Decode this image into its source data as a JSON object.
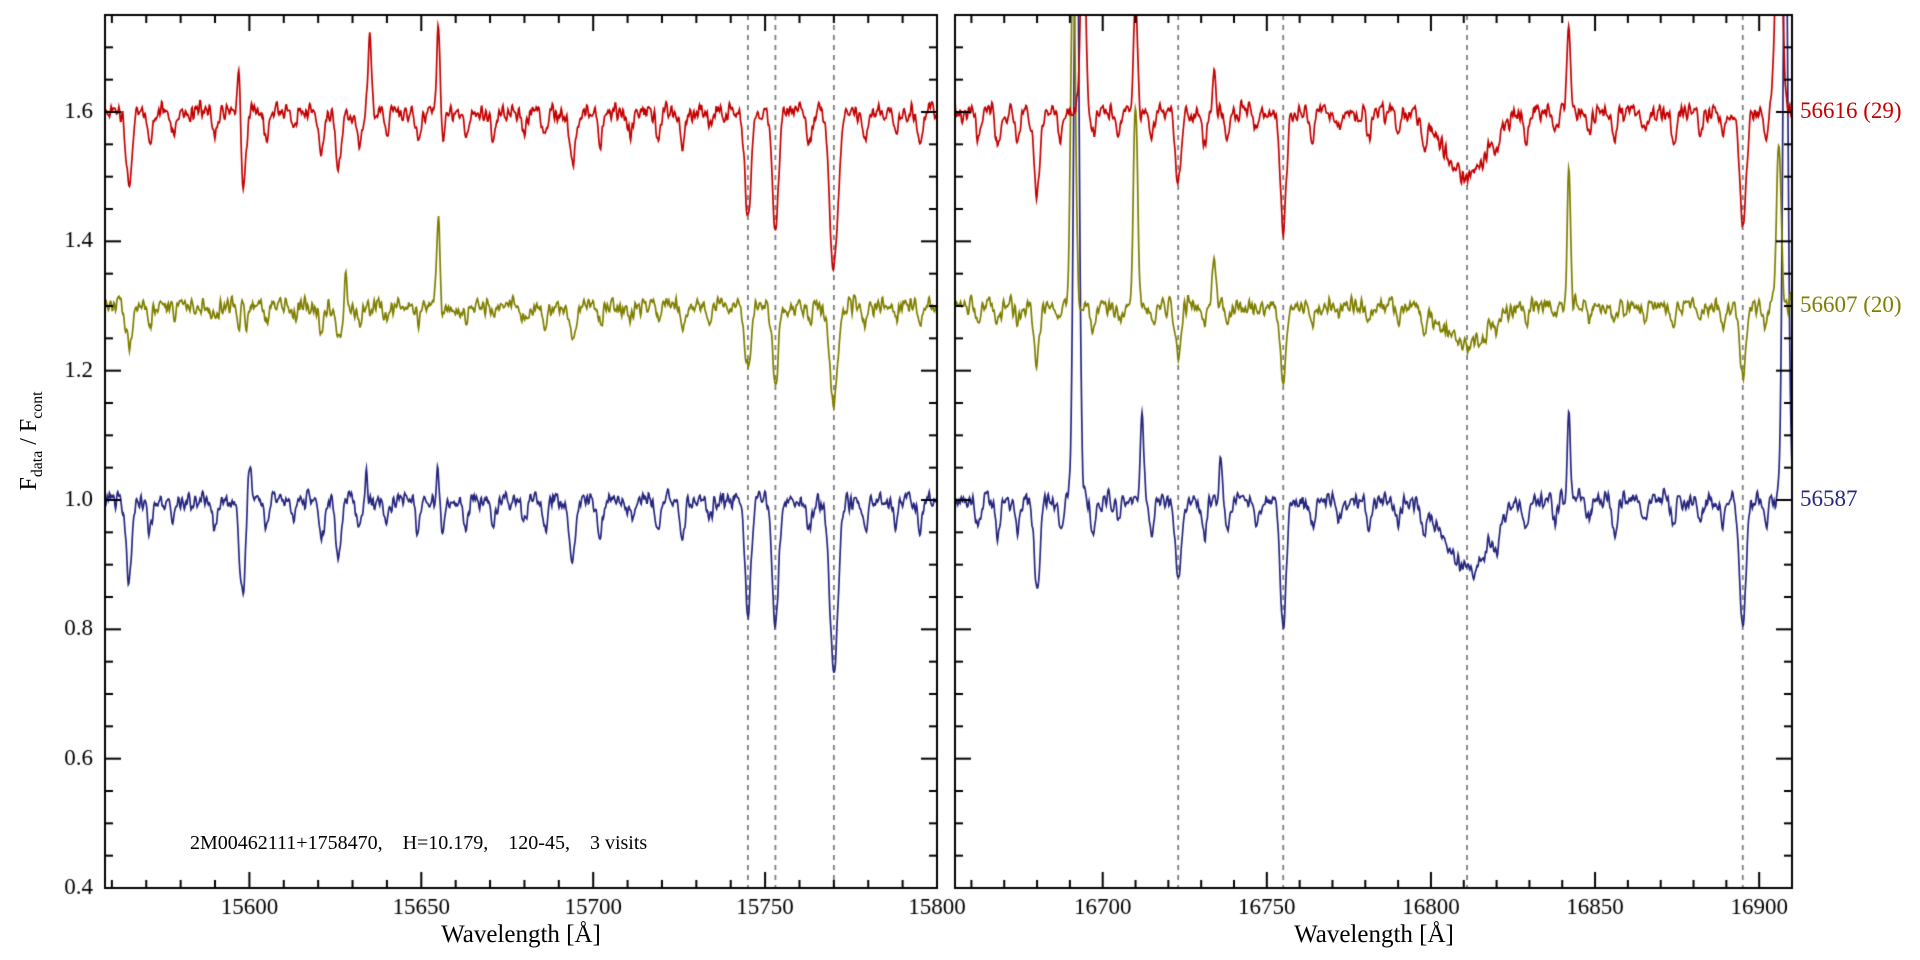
{
  "chart_data": {
    "type": "line",
    "title": "",
    "xlabel": "Wavelength [Å]",
    "ylabel": "F_data / F_cont",
    "ylabel_parts": {
      "base1": "F",
      "sub1": "data",
      "base2": " / F",
      "sub2": "cont"
    },
    "annotation": "2M00462111+1758470,    H=10.179,    120-45,    3 visits",
    "ylim": [
      0.4,
      1.75
    ],
    "yticks": [
      0.4,
      0.6,
      0.8,
      1.0,
      1.2,
      1.4,
      1.6
    ],
    "dashed_color": "#7f7f7f",
    "grid": false,
    "legend_position": "right-outside",
    "panels": [
      {
        "xlim": [
          15558,
          15800
        ],
        "xticks": [
          15600,
          15650,
          15700,
          15750,
          15800
        ],
        "dashed_lines": [
          15745,
          15753,
          15770
        ],
        "absorption": [
          [
            15565,
            0.11,
            0.9
          ],
          [
            15571,
            0.05,
            0.7
          ],
          [
            15578,
            0.03,
            0.7
          ],
          [
            15590,
            0.04,
            0.7
          ],
          [
            15598,
            0.13,
            0.9
          ],
          [
            15605,
            0.04,
            0.7
          ],
          [
            15613,
            0.03,
            0.7
          ],
          [
            15621,
            0.06,
            0.7
          ],
          [
            15626,
            0.08,
            0.8
          ],
          [
            15632,
            0.05,
            0.7
          ],
          [
            15640,
            0.03,
            0.7
          ],
          [
            15649,
            0.04,
            0.7
          ],
          [
            15656,
            0.05,
            0.7
          ],
          [
            15663,
            0.04,
            0.7
          ],
          [
            15671,
            0.03,
            0.7
          ],
          [
            15680,
            0.03,
            0.7
          ],
          [
            15686,
            0.04,
            0.7
          ],
          [
            15694,
            0.08,
            0.9
          ],
          [
            15702,
            0.05,
            0.7
          ],
          [
            15711,
            0.03,
            0.7
          ],
          [
            15719,
            0.04,
            0.7
          ],
          [
            15726,
            0.05,
            0.7
          ],
          [
            15734,
            0.03,
            0.7
          ],
          [
            15745,
            0.16,
            0.9
          ],
          [
            15753,
            0.18,
            0.9
          ],
          [
            15763,
            0.04,
            0.7
          ],
          [
            15770,
            0.24,
            1.2
          ],
          [
            15779,
            0.04,
            0.7
          ],
          [
            15788,
            0.03,
            0.7
          ],
          [
            15795,
            0.04,
            0.7
          ]
        ]
      },
      {
        "xlim": [
          16655,
          16910
        ],
        "xticks": [
          16700,
          16750,
          16800,
          16850,
          16900
        ],
        "dashed_lines": [
          16723,
          16755,
          16811,
          16895
        ],
        "absorption": [
          [
            16662,
            0.04,
            0.7
          ],
          [
            16668,
            0.05,
            0.7
          ],
          [
            16674,
            0.04,
            0.7
          ],
          [
            16680,
            0.13,
            0.9
          ],
          [
            16687,
            0.04,
            0.7
          ],
          [
            16697,
            0.04,
            0.7
          ],
          [
            16705,
            0.03,
            0.7
          ],
          [
            16715,
            0.04,
            0.7
          ],
          [
            16723,
            0.11,
            0.9
          ],
          [
            16731,
            0.05,
            0.7
          ],
          [
            16738,
            0.04,
            0.7
          ],
          [
            16747,
            0.03,
            0.7
          ],
          [
            16755,
            0.18,
            0.9
          ],
          [
            16764,
            0.04,
            0.7
          ],
          [
            16772,
            0.03,
            0.7
          ],
          [
            16781,
            0.04,
            0.7
          ],
          [
            16790,
            0.03,
            0.7
          ],
          [
            16798,
            0.04,
            0.7
          ],
          [
            16811,
            0.1,
            6.5
          ],
          [
            16820,
            0.03,
            0.7
          ],
          [
            16829,
            0.04,
            0.7
          ],
          [
            16838,
            0.03,
            0.7
          ],
          [
            16848,
            0.03,
            0.7
          ],
          [
            16856,
            0.04,
            0.7
          ],
          [
            16865,
            0.03,
            0.7
          ],
          [
            16874,
            0.04,
            0.7
          ],
          [
            16882,
            0.03,
            0.7
          ],
          [
            16889,
            0.04,
            0.7
          ],
          [
            16895,
            0.18,
            1.0
          ],
          [
            16902,
            0.04,
            0.7
          ]
        ]
      }
    ],
    "series": [
      {
        "label": "56616 (29)",
        "color": "#c40000",
        "offset": 1.6,
        "depth_scale": 1.0,
        "emission": [
          [
            [
              15597,
              0.14,
              0.5
            ],
            [
              15635,
              0.13,
              0.5
            ],
            [
              15655,
              0.14,
              0.5
            ]
          ],
          [
            [
              16694,
              0.35,
              0.7
            ],
            [
              16710,
              0.18,
              0.6
            ],
            [
              16734,
              0.06,
              0.5
            ],
            [
              16842,
              0.13,
              0.5
            ],
            [
              16906,
              0.45,
              0.9
            ]
          ]
        ]
      },
      {
        "label": "56607 (20)",
        "color": "#7f7f00",
        "offset": 1.3,
        "depth_scale": 0.62,
        "emission": [
          [
            [
              15598,
              0.09,
              0.5
            ],
            [
              15628,
              0.04,
              0.4
            ],
            [
              15655,
              0.14,
              0.5
            ]
          ],
          [
            [
              16691,
              0.55,
              0.7
            ],
            [
              16710,
              0.32,
              0.6
            ],
            [
              16734,
              0.08,
              0.5
            ],
            [
              16842,
              0.21,
              0.5
            ],
            [
              16906,
              0.25,
              0.7
            ]
          ]
        ]
      },
      {
        "label": "56587",
        "color": "#26267f",
        "offset": 1.0,
        "depth_scale": 1.1,
        "emission": [
          [
            [
              15600,
              0.07,
              0.5
            ],
            [
              15634,
              0.04,
              0.4
            ],
            [
              15655,
              0.06,
              0.5
            ]
          ],
          [
            [
              16692,
              1.0,
              0.8
            ],
            [
              16712,
              0.13,
              0.5
            ],
            [
              16736,
              0.06,
              0.5
            ],
            [
              16842,
              0.13,
              0.5
            ],
            [
              16908,
              0.95,
              0.8
            ]
          ]
        ]
      }
    ]
  }
}
